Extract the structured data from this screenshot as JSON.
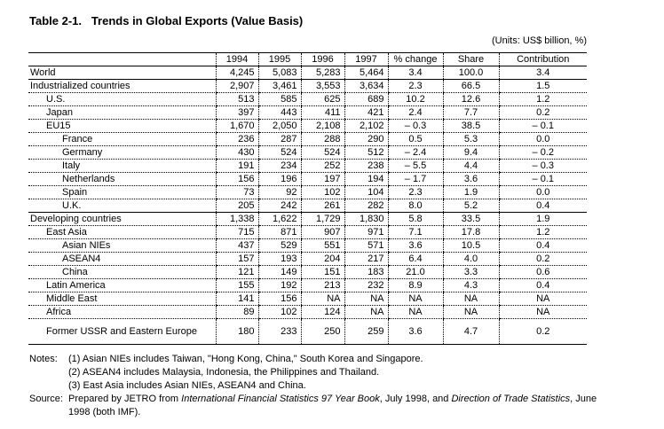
{
  "title": "Table 2-1.   Trends in Global Exports (Value Basis)",
  "units": "(Units: US$ billion, %)",
  "headers": [
    "",
    "1994",
    "1995",
    "1996",
    "1997",
    "% change",
    "Share",
    "Contribution"
  ],
  "rows": [
    {
      "label": "World",
      "level": 0,
      "values": [
        "4,245",
        "5,083",
        "5,283",
        "5,464",
        "3.4",
        "100.0",
        "3.4"
      ]
    },
    {
      "label": "Industrialized countries",
      "level": 0,
      "values": [
        "2,907",
        "3,461",
        "3,553",
        "3,634",
        "2.3",
        "66.5",
        "1.5"
      ]
    },
    {
      "label": "U.S.",
      "level": 1,
      "values": [
        "513",
        "585",
        "625",
        "689",
        "10.2",
        "12.6",
        "1.2"
      ]
    },
    {
      "label": "Japan",
      "level": 1,
      "values": [
        "397",
        "443",
        "411",
        "421",
        "2.4",
        "7.7",
        "0.2"
      ]
    },
    {
      "label": "EU15",
      "level": 1,
      "values": [
        "1,670",
        "2,050",
        "2,108",
        "2,102",
        "– 0.3",
        "38.5",
        "– 0.1"
      ]
    },
    {
      "label": "France",
      "level": 2,
      "values": [
        "236",
        "287",
        "288",
        "290",
        "0.5",
        "5.3",
        "0.0"
      ]
    },
    {
      "label": "Germany",
      "level": 2,
      "values": [
        "430",
        "524",
        "524",
        "512",
        "– 2.4",
        "9.4",
        "– 0.2"
      ]
    },
    {
      "label": "Italy",
      "level": 2,
      "values": [
        "191",
        "234",
        "252",
        "238",
        "– 5.5",
        "4.4",
        "– 0.3"
      ]
    },
    {
      "label": "Netherlands",
      "level": 2,
      "values": [
        "156",
        "196",
        "197",
        "194",
        "– 1.7",
        "3.6",
        "– 0.1"
      ]
    },
    {
      "label": "Spain",
      "level": 2,
      "values": [
        "73",
        "92",
        "102",
        "104",
        "2.3",
        "1.9",
        "0.0"
      ]
    },
    {
      "label": "U.K.",
      "level": 2,
      "values": [
        "205",
        "242",
        "261",
        "282",
        "8.0",
        "5.2",
        "0.4"
      ]
    },
    {
      "label": "Developing countries",
      "level": 0,
      "values": [
        "1,338",
        "1,622",
        "1,729",
        "1,830",
        "5.8",
        "33.5",
        "1.9"
      ]
    },
    {
      "label": "East Asia",
      "level": 1,
      "values": [
        "715",
        "871",
        "907",
        "971",
        "7.1",
        "17.8",
        "1.2"
      ]
    },
    {
      "label": "Asian NIEs",
      "level": 2,
      "values": [
        "437",
        "529",
        "551",
        "571",
        "3.6",
        "10.5",
        "0.4"
      ]
    },
    {
      "label": "ASEAN4",
      "level": 2,
      "values": [
        "157",
        "193",
        "204",
        "217",
        "6.4",
        "4.0",
        "0.2"
      ]
    },
    {
      "label": "China",
      "level": 2,
      "values": [
        "121",
        "149",
        "151",
        "183",
        "21.0",
        "3.3",
        "0.6"
      ]
    },
    {
      "label": "Latin America",
      "level": 1,
      "values": [
        "155",
        "192",
        "213",
        "232",
        "8.9",
        "4.3",
        "0.4"
      ]
    },
    {
      "label": "Middle East",
      "level": 1,
      "values": [
        "141",
        "156",
        "NA",
        "NA",
        "NA",
        "NA",
        "NA"
      ]
    },
    {
      "label": "Africa",
      "level": 1,
      "values": [
        "89",
        "102",
        "124",
        "NA",
        "NA",
        "NA",
        "NA"
      ]
    },
    {
      "label": "Former USSR and Eastern Europe",
      "level": 1,
      "values": [
        "180",
        "233",
        "250",
        "259",
        "3.6",
        "4.7",
        "0.2"
      ]
    }
  ],
  "notes": {
    "label": "Notes:",
    "items": [
      "(1) Asian NIEs includes Taiwan, \"Hong Kong, China,\" South Korea and Singapore.",
      "(2) ASEAN4 includes Malaysia, Indonesia, the Philippines and Thailand.",
      "(3) East Asia includes Asian NIEs, ASEAN4 and China."
    ]
  },
  "source": {
    "label": "Source:",
    "text_1": "Prepared by JETRO from ",
    "italic_1": "International Financial Statistics 97 Year Book",
    "text_2": ", July 1998, and ",
    "italic_2": "Direction of Trade Statistics",
    "text_3": ", June 1998 (both IMF)."
  }
}
